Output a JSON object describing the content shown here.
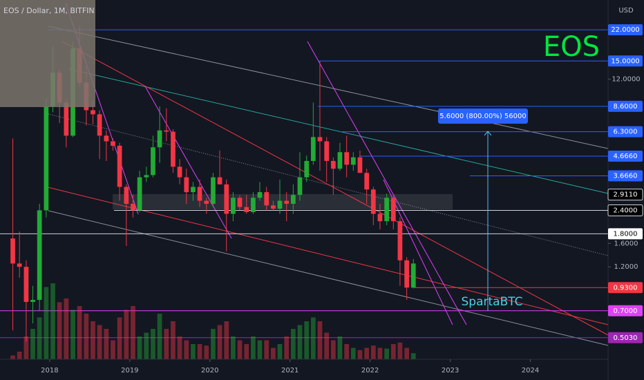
{
  "chart_data": {
    "type": "candlestick",
    "title": "EOS / Dollar, 1M, BITFIN",
    "currency": "USD",
    "symbol_label": "EOS",
    "author": "SpartaBTC",
    "measure_label": "5.6000 (800.00%) 56000",
    "log_scale": true,
    "up_color": "#22ab35",
    "down_color": "#f23645",
    "x": [
      2017.54,
      2017.623,
      2017.707,
      2017.79,
      2017.873,
      2017.957,
      2018.04,
      2018.123,
      2018.207,
      2018.29,
      2018.373,
      2018.457,
      2018.54,
      2018.623,
      2018.707,
      2018.79,
      2018.873,
      2018.957,
      2019.04,
      2019.123,
      2019.207,
      2019.29,
      2019.373,
      2019.457,
      2019.54,
      2019.623,
      2019.707,
      2019.79,
      2019.873,
      2019.957,
      2020.04,
      2020.123,
      2020.207,
      2020.29,
      2020.373,
      2020.457,
      2020.54,
      2020.623,
      2020.707,
      2020.79,
      2020.873,
      2020.957,
      2021.04,
      2021.123,
      2021.207,
      2021.29,
      2021.373,
      2021.457,
      2021.54,
      2021.623,
      2021.707,
      2021.79,
      2021.873,
      2021.957,
      2022.04,
      2022.123,
      2022.207,
      2022.29,
      2022.373,
      2022.457,
      2022.54
    ],
    "open": [
      1.7,
      1.25,
      1.2,
      0.78,
      0.8,
      2.4,
      8.6,
      13.0,
      9.0,
      6.0,
      17.5,
      11.5,
      8.2,
      7.8,
      6.0,
      5.6,
      5.3,
      3.2,
      2.6,
      2.4,
      3.6,
      3.7,
      5.2,
      6.4,
      6.3,
      4.1,
      3.6,
      3.0,
      3.2,
      2.7,
      2.6,
      3.6,
      3.3,
      2.3,
      2.8,
      2.5,
      2.35,
      2.8,
      3.0,
      2.55,
      2.45,
      2.7,
      2.6,
      2.9,
      3.6,
      4.4,
      5.9,
      5.6,
      4.4,
      4.0,
      4.9,
      4.2,
      4.6,
      3.8,
      3.1,
      2.3,
      2.1,
      2.8,
      2.1,
      1.3,
      0.93
    ],
    "high": [
      5.8,
      1.85,
      1.3,
      0.95,
      2.6,
      9.5,
      18.0,
      13.5,
      9.5,
      19.0,
      23.0,
      14.0,
      9.2,
      8.2,
      6.4,
      5.8,
      5.5,
      3.3,
      2.9,
      3.9,
      4.1,
      6.0,
      8.6,
      8.4,
      6.5,
      4.5,
      4.0,
      3.4,
      3.5,
      2.8,
      3.8,
      5.0,
      3.5,
      3.0,
      2.9,
      2.9,
      3.0,
      3.4,
      3.2,
      2.7,
      3.5,
      3.0,
      3.3,
      4.9,
      4.7,
      9.0,
      14.9,
      5.9,
      4.6,
      5.5,
      6.0,
      4.9,
      5.0,
      4.0,
      3.2,
      2.6,
      2.95,
      2.9,
      2.2,
      1.35,
      1.32
    ],
    "low": [
      0.55,
      1.05,
      0.48,
      0.6,
      0.7,
      2.2,
      8.0,
      7.0,
      5.2,
      5.9,
      11.0,
      6.8,
      6.9,
      4.5,
      4.4,
      5.0,
      2.7,
      1.55,
      2.2,
      2.35,
      3.4,
      3.6,
      4.3,
      5.6,
      3.8,
      3.3,
      2.6,
      2.7,
      2.5,
      2.3,
      2.5,
      3.4,
      1.45,
      2.1,
      2.4,
      2.3,
      2.3,
      2.7,
      2.4,
      2.4,
      2.3,
      2.1,
      2.3,
      2.7,
      3.4,
      4.2,
      3.9,
      3.4,
      2.9,
      3.9,
      3.6,
      3.9,
      3.9,
      2.6,
      2.0,
      1.9,
      2.0,
      1.9,
      0.95,
      0.8,
      0.92
    ],
    "close": [
      1.25,
      1.2,
      0.78,
      0.8,
      2.4,
      8.6,
      13.0,
      9.0,
      6.0,
      17.5,
      11.5,
      8.2,
      7.8,
      6.0,
      5.6,
      5.3,
      3.2,
      2.6,
      2.4,
      3.6,
      3.7,
      5.2,
      6.4,
      6.3,
      4.1,
      3.6,
      3.0,
      3.2,
      2.7,
      2.6,
      3.6,
      3.3,
      2.3,
      2.8,
      2.5,
      2.35,
      2.8,
      3.0,
      2.55,
      2.45,
      2.7,
      2.6,
      2.9,
      3.6,
      4.4,
      5.9,
      5.6,
      4.4,
      4.0,
      4.9,
      4.2,
      4.6,
      3.8,
      3.1,
      2.3,
      2.1,
      2.8,
      2.1,
      1.3,
      0.93,
      1.25
    ],
    "volume": [
      5,
      10,
      30,
      40,
      55,
      95,
      100,
      75,
      80,
      65,
      70,
      60,
      50,
      45,
      40,
      25,
      55,
      65,
      70,
      30,
      35,
      40,
      60,
      40,
      50,
      30,
      25,
      20,
      20,
      18,
      40,
      45,
      50,
      30,
      25,
      20,
      30,
      25,
      25,
      15,
      20,
      30,
      40,
      45,
      50,
      55,
      50,
      35,
      25,
      30,
      20,
      15,
      12,
      15,
      18,
      15,
      14,
      20,
      22,
      15,
      8
    ],
    "xlim": [
      2017.38,
      2024.97
    ],
    "xticks": [
      2018,
      2019,
      2020,
      2021,
      2022,
      2023,
      2024
    ],
    "ylim": [
      0.386,
      31.7
    ],
    "yticks": [
      {
        "value": 12,
        "label": "12.0000"
      },
      {
        "value": 1.6,
        "label": "1.6000"
      },
      {
        "value": 1.2,
        "label": "1.2000"
      }
    ],
    "levels": [
      {
        "value": 22,
        "label": "22.0000",
        "color": "#2962ff",
        "text_color": "#ffffff"
      },
      {
        "value": 15,
        "label": "15.0000",
        "color": "#2962ff",
        "text_color": "#ffffff"
      },
      {
        "value": 8.6,
        "label": "8.6000",
        "color": "#2962ff",
        "text_color": "#ffffff"
      },
      {
        "value": 6.3,
        "label": "6.3000",
        "color": "#2962ff",
        "text_color": "#ffffff"
      },
      {
        "value": 4.666,
        "label": "4.6660",
        "color": "#2962ff",
        "text_color": "#ffffff"
      },
      {
        "value": 3.666,
        "label": "3.6660",
        "color": "#2962ff",
        "text_color": "#ffffff"
      },
      {
        "value": 2.911,
        "label": "2.9110",
        "color": "#000000",
        "text_color": "#ffffff"
      },
      {
        "value": 2.4,
        "label": "2.4000",
        "color": "#000000",
        "text_color": "#ffffff"
      },
      {
        "value": 1.8,
        "label": "1.8000",
        "color": "#ffffff",
        "text_color": "#000000"
      },
      {
        "value": 0.93,
        "label": "0.9300",
        "color": "#f23645",
        "text_color": "#ffffff"
      },
      {
        "value": 0.7,
        "label": "0.7000",
        "color": "#e040fb",
        "text_color": "#ffffff"
      },
      {
        "value": 0.503,
        "label": "0.5030",
        "color": "#9c27b0",
        "text_color": "#ffffff"
      }
    ]
  }
}
